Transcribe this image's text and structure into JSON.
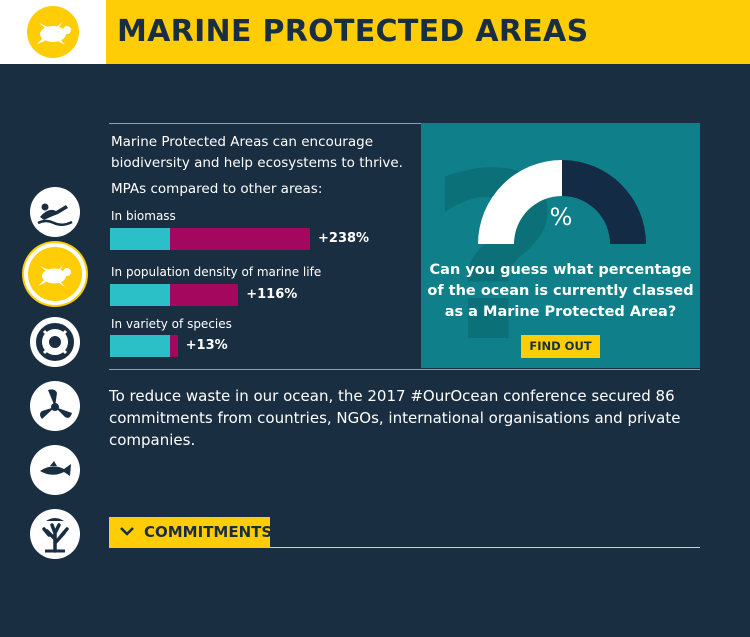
{
  "header": {
    "title": "MARINE PROTECTED AREAS",
    "logo_icon": "turtle-icon"
  },
  "colors": {
    "background": "#1a2e42",
    "accent_yellow": "#ffcd05",
    "teal": "#2bbfc8",
    "magenta": "#a4075e",
    "quiz_teal": "#0f7f8a"
  },
  "side_icons": [
    {
      "icon": "swimmer-icon",
      "active": false
    },
    {
      "icon": "turtle-icon",
      "active": true
    },
    {
      "icon": "lifebuoy-icon",
      "active": false
    },
    {
      "icon": "propeller-icon",
      "active": false
    },
    {
      "icon": "fish-icon",
      "active": false
    },
    {
      "icon": "coral-icon",
      "active": false
    }
  ],
  "intro": {
    "text": "Marine Protected Areas can encourage biodiversity and help ecosystems to thrive.",
    "compare_title": "MPAs compared to other areas:"
  },
  "chart_data": {
    "type": "bar",
    "categories": [
      "In biomass",
      "In population density of marine life",
      "In variety of species"
    ],
    "values": [
      238,
      116,
      13
    ],
    "value_labels": [
      "+238%",
      "+116%",
      "+13%"
    ]
  },
  "quiz": {
    "symbol": "%",
    "question": "Can you guess what percentage of the ocean is currently classed as a Marine Protected Area?",
    "button_label": "FIND OUT"
  },
  "waste": {
    "text": "To reduce waste in our ocean, the 2017 #OurOcean conference secured 86 commitments from countries, NGOs, international organisations and private companies."
  },
  "commitments": {
    "button_label": "COMMITMENTS",
    "icon": "chevron-down-icon"
  }
}
